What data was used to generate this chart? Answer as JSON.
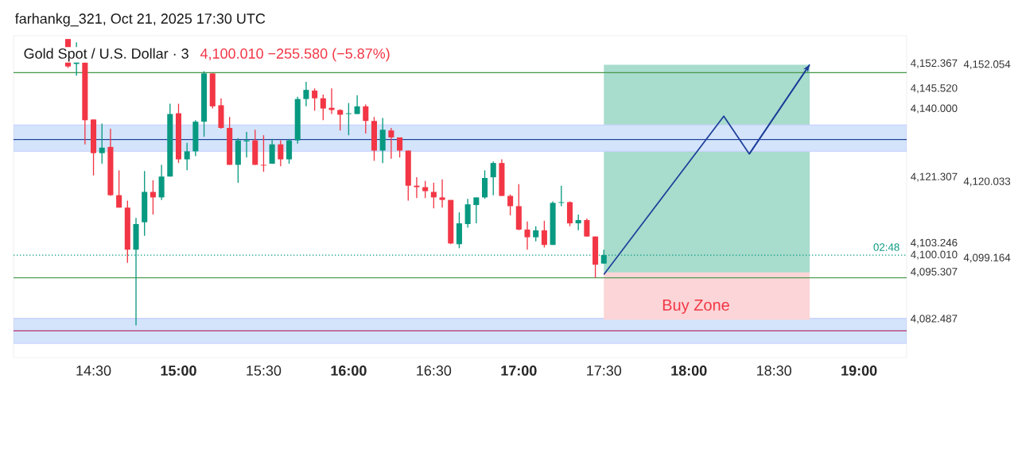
{
  "chart_data": {
    "type": "candlestick",
    "title": "Gold Spot / U.S. Dollar · 3",
    "subtitle": "4,100.010  −255.580 (−5.87%)",
    "x": [
      14.35,
      14.4,
      14.45,
      14.5,
      14.55,
      14.6,
      14.65,
      14.7,
      14.75,
      14.8,
      14.85,
      14.9,
      14.95,
      15,
      15.05,
      15.1,
      15.15,
      15.2,
      15.25,
      15.3,
      15.35,
      15.4,
      15.45,
      15.5,
      15.55,
      15.6,
      15.65,
      15.7,
      15.75,
      15.8,
      15.85,
      15.9,
      15.95,
      16,
      16.05,
      16.1,
      16.15,
      16.2,
      16.25,
      16.3,
      16.35,
      16.4,
      16.45,
      16.5,
      16.55,
      16.6,
      16.65,
      16.7,
      16.75,
      16.8,
      16.85,
      16.9,
      16.95,
      17,
      17.05,
      17.1,
      17.15,
      17.2,
      17.25,
      17.3,
      17.35,
      17.4,
      17.45,
      17.5
    ],
    "ohlc": [
      [
        4159.1,
        4159.1,
        4151.2,
        4151.6
      ],
      [
        4152.3,
        4158.2,
        4149.1,
        4152.9
      ],
      [
        4152.7,
        4152.7,
        4130.3,
        4136.9
      ],
      [
        4137.1,
        4137.1,
        4121.8,
        4127.9
      ],
      [
        4127.9,
        4136.0,
        4125.0,
        4129.4
      ],
      [
        4129.6,
        4134.6,
        4116.2,
        4116.4
      ],
      [
        4116.4,
        4123.2,
        4113.0,
        4113.0
      ],
      [
        4113.0,
        4114.9,
        4097.9,
        4101.5
      ],
      [
        4101.5,
        4110.2,
        4080.8,
        4108.5
      ],
      [
        4109.0,
        4123.0,
        4105.3,
        4117.3
      ],
      [
        4117.3,
        4120.5,
        4111.1,
        4115.8
      ],
      [
        4115.8,
        4124.7,
        4115.1,
        4121.5
      ],
      [
        4121.5,
        4141.4,
        4121.5,
        4138.6
      ],
      [
        4138.8,
        4141.4,
        4125.2,
        4126.2
      ],
      [
        4126.2,
        4130.7,
        4123.2,
        4128.4
      ],
      [
        4128.4,
        4136.9,
        4127.1,
        4136.5
      ],
      [
        4136.5,
        4150.3,
        4132.4,
        4149.7
      ],
      [
        4149.7,
        4149.7,
        4140.1,
        4140.7
      ],
      [
        4141.0,
        4142.9,
        4134.6,
        4134.8
      ],
      [
        4134.8,
        4137.8,
        4124.7,
        4124.7
      ],
      [
        4124.7,
        4132.0,
        4119.8,
        4131.4
      ],
      [
        4131.1,
        4133.7,
        4126.7,
        4131.4
      ],
      [
        4131.4,
        4134.3,
        4124.7,
        4124.7
      ],
      [
        4124.7,
        4132.8,
        4122.8,
        4124.5
      ],
      [
        4125.0,
        4131.8,
        4125.0,
        4130.3
      ],
      [
        4130.3,
        4131.4,
        4124.3,
        4126.2
      ],
      [
        4126.2,
        4131.8,
        4125.0,
        4131.4
      ],
      [
        4131.4,
        4143.3,
        4130.5,
        4142.7
      ],
      [
        4142.7,
        4147.4,
        4140.7,
        4145.2
      ],
      [
        4145.0,
        4145.6,
        4139.5,
        4142.9
      ],
      [
        4142.9,
        4143.9,
        4136.9,
        4140.1
      ],
      [
        4140.3,
        4145.6,
        4138.6,
        4139.7
      ],
      [
        4139.7,
        4139.9,
        4134.1,
        4138.4
      ],
      [
        4138.6,
        4141.6,
        4132.8,
        4138.8
      ],
      [
        4138.6,
        4143.7,
        4138.6,
        4140.7
      ],
      [
        4140.7,
        4141.2,
        4133.3,
        4136.7
      ],
      [
        4136.7,
        4137.8,
        4125.8,
        4128.6
      ],
      [
        4128.6,
        4137.5,
        4125.2,
        4134.3
      ],
      [
        4134.1,
        4134.8,
        4126.4,
        4132.2
      ],
      [
        4132.2,
        4132.2,
        4126.7,
        4128.6
      ],
      [
        4128.6,
        4128.6,
        4114.9,
        4119.0
      ],
      [
        4119.0,
        4121.3,
        4115.6,
        4118.6
      ],
      [
        4118.6,
        4120.3,
        4115.6,
        4117.5
      ],
      [
        4117.3,
        4119.8,
        4112.8,
        4115.8
      ],
      [
        4115.8,
        4120.7,
        4113.0,
        4115.1
      ],
      [
        4115.1,
        4115.1,
        4103.0,
        4103.2
      ],
      [
        4103.0,
        4111.7,
        4101.9,
        4108.7
      ],
      [
        4108.5,
        4115.4,
        4107.5,
        4113.9
      ],
      [
        4113.7,
        4115.8,
        4108.7,
        4115.8
      ],
      [
        4115.8,
        4123.2,
        4115.4,
        4121.1
      ],
      [
        4121.3,
        4125.6,
        4116.4,
        4125.2
      ],
      [
        4125.2,
        4126.2,
        4116.2,
        4116.2
      ],
      [
        4116.2,
        4116.6,
        4110.9,
        4113.4
      ],
      [
        4113.4,
        4119.4,
        4106.8,
        4107.0
      ],
      [
        4107.0,
        4109.2,
        4101.5,
        4104.9
      ],
      [
        4104.9,
        4107.9,
        4103.8,
        4106.8
      ],
      [
        4106.8,
        4109.4,
        4102.1,
        4102.8
      ],
      [
        4102.8,
        4114.7,
        4102.8,
        4114.3
      ],
      [
        4114.3,
        4119.0,
        4113.4,
        4114.5
      ],
      [
        4114.5,
        4114.7,
        4107.9,
        4108.7
      ],
      [
        4108.7,
        4111.1,
        4106.8,
        4109.6
      ],
      [
        4109.6,
        4110.0,
        4105.1,
        4105.1
      ],
      [
        4105.1,
        4105.1,
        4093.8,
        4097.4
      ],
      [
        4097.7,
        4101.5,
        4097.7,
        4100.01
      ]
    ],
    "series": [
      {
        "type": "line",
        "color": "#a8dccd",
        "x": [
          17.5,
          18.71
        ],
        "values": [
          4095.307,
          4095.307
        ],
        "lower": [
          4095.307,
          4095.307
        ],
        "upper": [
          4152.054,
          4152.054
        ]
      },
      {
        "type": "line",
        "color": "#fbd5d7",
        "x": [
          17.5,
          18.71
        ],
        "values": [
          4082.487,
          4082.487
        ],
        "lower": [
          4082.487,
          4082.487
        ],
        "upper": [
          4095.307,
          4095.307
        ]
      },
      {
        "type": "line",
        "color": "#1e3f99",
        "x": [
          17.5,
          18.205,
          18.355,
          18.71
        ],
        "values": [
          4094.7,
          4138.0,
          4127.7,
          4152.1
        ]
      }
    ],
    "bands": [
      {
        "axis": "y",
        "from": 4128.4,
        "to": 4135.6,
        "color": "#d3e4fb"
      },
      {
        "axis": "y",
        "from": 4075.9,
        "to": 4082.7,
        "color": "#d3e4fb"
      }
    ],
    "ref_lines": [
      {
        "axis": "y",
        "value": 4149.9,
        "color": "#4a9a4e",
        "line_style": "solid"
      },
      {
        "axis": "y",
        "value": 4093.8,
        "color": "#4a9a4e",
        "line_style": "solid"
      },
      {
        "axis": "y",
        "value": 4131.6,
        "color": "#1e3f99",
        "line_style": "solid"
      },
      {
        "axis": "y",
        "value": 4079.3,
        "color": "#b5306e",
        "line_style": "solid"
      },
      {
        "axis": "y",
        "value": 4100.01,
        "color": "#089981",
        "line_style": "dotted"
      }
    ],
    "annotations": [
      "farhankg_321, Oct 21, 2025 17:30 UTC",
      "Buy Zone",
      "02:48"
    ],
    "xlim": [
      14.03,
      19.28
    ],
    "ylim": [
      4072,
      4160
    ],
    "xticks": [
      {
        "value": 14.5,
        "label": "14:30"
      },
      {
        "value": 15,
        "label": "15:00"
      },
      {
        "value": 15.5,
        "label": "15:30"
      },
      {
        "value": 16,
        "label": "16:00"
      },
      {
        "value": 16.5,
        "label": "16:30"
      },
      {
        "value": 17,
        "label": "17:00"
      },
      {
        "value": 17.5,
        "label": "17:30"
      },
      {
        "value": 18,
        "label": "18:00"
      },
      {
        "value": 18.5,
        "label": "18:30"
      },
      {
        "value": 19,
        "label": "19:00"
      }
    ],
    "yticks": [
      {
        "value": 4152.367,
        "label": "4,152.367"
      },
      {
        "value": 4145.52,
        "label": "4,145.520"
      },
      {
        "value": 4140,
        "label": "4,140.000"
      },
      {
        "value": 4121.307,
        "label": "4,121.307"
      },
      {
        "value": 4103.246,
        "label": "4,103.246"
      },
      {
        "value": 4100.01,
        "label": "4,100.010"
      },
      {
        "value": 4095.307,
        "label": "4,095.307"
      },
      {
        "value": 4082.487,
        "label": "4,082.487"
      }
    ],
    "y2lim": [
      4072,
      4160
    ],
    "y2ticks": [
      {
        "value": 4152.054,
        "label": "4,152.054"
      },
      {
        "value": 4120.033,
        "label": "4,120.033"
      },
      {
        "value": 4099.164,
        "label": "4,099.164"
      }
    ]
  }
}
